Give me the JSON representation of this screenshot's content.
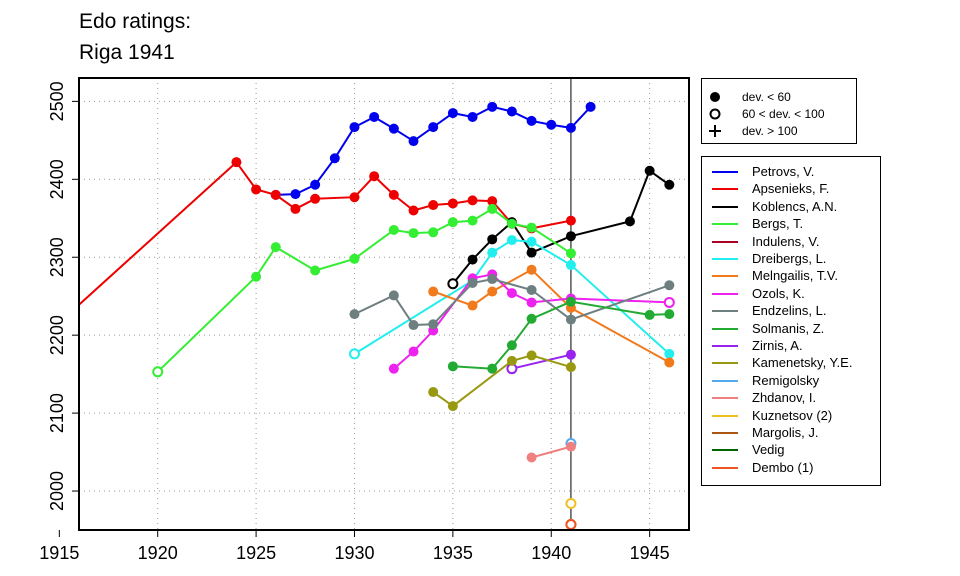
{
  "header": {
    "title_line1": "Edo ratings:",
    "title_line2": "Riga 1941"
  },
  "dev_legend": {
    "entries": [
      {
        "label": "dev. < 60",
        "symbol": "filled-circle"
      },
      {
        "label": "60 < dev. < 100",
        "symbol": "open-circle"
      },
      {
        "label": "dev. > 100",
        "symbol": "plus"
      }
    ]
  },
  "chart_data": {
    "type": "line",
    "title": "Edo ratings: Riga 1941",
    "xlabel": "",
    "ylabel": "",
    "xlim": [
      1916,
      1947
    ],
    "ylim": [
      1950,
      2530
    ],
    "xticks": [
      1915,
      1920,
      1925,
      1930,
      1935,
      1940,
      1945
    ],
    "yticks": [
      2000,
      2100,
      2200,
      2300,
      2400,
      2500
    ],
    "grid": true,
    "vline_x": 1941,
    "legend_position": "right",
    "series": [
      {
        "name": "Petrovs, V.",
        "color": "#0000ee",
        "points": [
          [
            1926,
            2380,
            "filled"
          ],
          [
            1927,
            2381,
            "filled"
          ],
          [
            1928,
            2393,
            "filled"
          ],
          [
            1929,
            2427,
            "filled"
          ],
          [
            1930,
            2467,
            "filled"
          ],
          [
            1931,
            2480,
            "filled"
          ],
          [
            1932,
            2465,
            "filled"
          ],
          [
            1933,
            2449,
            "filled"
          ],
          [
            1934,
            2467,
            "filled"
          ],
          [
            1935,
            2485,
            "filled"
          ],
          [
            1936,
            2480,
            "filled"
          ],
          [
            1937,
            2493,
            "filled"
          ],
          [
            1938,
            2487,
            "filled"
          ],
          [
            1939,
            2475,
            "filled"
          ],
          [
            1940,
            2470,
            "filled"
          ],
          [
            1941,
            2466,
            "filled"
          ],
          [
            1942,
            2493,
            "filled"
          ]
        ]
      },
      {
        "name": "Apsenieks, F.",
        "color": "#ee0000",
        "points": [
          [
            1916,
            2239,
            "none"
          ],
          [
            1924,
            2422,
            "filled"
          ],
          [
            1925,
            2387,
            "filled"
          ],
          [
            1926,
            2380,
            "filled"
          ],
          [
            1927,
            2362,
            "filled"
          ],
          [
            1928,
            2375,
            "filled"
          ],
          [
            1930,
            2377,
            "filled"
          ],
          [
            1931,
            2404,
            "filled"
          ],
          [
            1932,
            2380,
            "filled"
          ],
          [
            1933,
            2360,
            "filled"
          ],
          [
            1934,
            2367,
            "filled"
          ],
          [
            1935,
            2369,
            "filled"
          ],
          [
            1936,
            2373,
            "filled"
          ],
          [
            1937,
            2372,
            "filled"
          ],
          [
            1938,
            2343,
            "filled"
          ],
          [
            1939,
            2337,
            "filled"
          ],
          [
            1941,
            2347,
            "filled"
          ]
        ]
      },
      {
        "name": "Koblencs, A.N.",
        "color": "#000000",
        "points": [
          [
            1935,
            2266,
            "open"
          ],
          [
            1936,
            2297,
            "filled"
          ],
          [
            1937,
            2323,
            "filled"
          ],
          [
            1938,
            2345,
            "filled"
          ],
          [
            1939,
            2306,
            "filled"
          ],
          [
            1941,
            2327,
            "filled"
          ],
          [
            1944,
            2346,
            "filled"
          ],
          [
            1945,
            2411,
            "filled"
          ],
          [
            1946,
            2393,
            "filled"
          ]
        ]
      },
      {
        "name": "Bergs, T.",
        "color": "#33ee33",
        "points": [
          [
            1920,
            2153,
            "open"
          ],
          [
            1925,
            2275,
            "filled"
          ],
          [
            1926,
            2313,
            "filled"
          ],
          [
            1928,
            2283,
            "filled"
          ],
          [
            1930,
            2298,
            "filled"
          ],
          [
            1932,
            2335,
            "filled"
          ],
          [
            1933,
            2331,
            "filled"
          ],
          [
            1934,
            2332,
            "filled"
          ],
          [
            1935,
            2345,
            "filled"
          ],
          [
            1936,
            2347,
            "filled"
          ],
          [
            1937,
            2362,
            "filled"
          ],
          [
            1938,
            2343,
            "filled"
          ],
          [
            1939,
            2338,
            "filled"
          ],
          [
            1941,
            2305,
            "filled"
          ]
        ]
      },
      {
        "name": "Indulens, V.",
        "color": "#aa0022",
        "points": []
      },
      {
        "name": "Dreibergs, L.",
        "color": "#22eeee",
        "points": [
          [
            1930,
            2176,
            "open"
          ],
          [
            1936,
            2270,
            "filled"
          ],
          [
            1937,
            2306,
            "filled"
          ],
          [
            1938,
            2322,
            "filled"
          ],
          [
            1939,
            2320,
            "filled"
          ],
          [
            1941,
            2290,
            "filled"
          ],
          [
            1946,
            2176,
            "filled"
          ]
        ]
      },
      {
        "name": "Melngailis, T.V.",
        "color": "#f07a1c",
        "points": [
          [
            1934,
            2256,
            "filled"
          ],
          [
            1936,
            2238,
            "filled"
          ],
          [
            1937,
            2256,
            "filled"
          ],
          [
            1939,
            2284,
            "filled"
          ],
          [
            1941,
            2235,
            "filled"
          ],
          [
            1946,
            2165,
            "filled"
          ]
        ]
      },
      {
        "name": "Ozols, K.",
        "color": "#ee22ee",
        "points": [
          [
            1932,
            2157,
            "filled"
          ],
          [
            1933,
            2179,
            "filled"
          ],
          [
            1934,
            2206,
            "filled"
          ],
          [
            1936,
            2273,
            "filled"
          ],
          [
            1937,
            2278,
            "filled"
          ],
          [
            1938,
            2254,
            "filled"
          ],
          [
            1939,
            2242,
            "filled"
          ],
          [
            1941,
            2247,
            "filled"
          ],
          [
            1946,
            2242,
            "open"
          ]
        ]
      },
      {
        "name": "Endzelins, L.",
        "color": "#6e7f80",
        "points": [
          [
            1930,
            2227,
            "filled"
          ],
          [
            1932,
            2251,
            "filled"
          ],
          [
            1933,
            2213,
            "filled"
          ],
          [
            1934,
            2214,
            "filled"
          ],
          [
            1936,
            2267,
            "filled"
          ],
          [
            1937,
            2272,
            "filled"
          ],
          [
            1939,
            2258,
            "filled"
          ],
          [
            1941,
            2220,
            "filled"
          ],
          [
            1946,
            2264,
            "filled"
          ]
        ]
      },
      {
        "name": "Solmanis, Z.",
        "color": "#22aa33",
        "points": [
          [
            1935,
            2160,
            "filled"
          ],
          [
            1937,
            2157,
            "filled"
          ],
          [
            1938,
            2187,
            "filled"
          ],
          [
            1939,
            2221,
            "filled"
          ],
          [
            1941,
            2243,
            "filled"
          ],
          [
            1945,
            2226,
            "filled"
          ],
          [
            1946,
            2227,
            "filled"
          ]
        ]
      },
      {
        "name": "Zirnis, A.",
        "color": "#9922ee",
        "points": [
          [
            1938,
            2157,
            "open"
          ],
          [
            1941,
            2175,
            "filled"
          ]
        ]
      },
      {
        "name": "Kamenetsky, Y.E.",
        "color": "#999911",
        "points": [
          [
            1934,
            2127,
            "filled"
          ],
          [
            1935,
            2109,
            "filled"
          ],
          [
            1938,
            2167,
            "filled"
          ],
          [
            1939,
            2174,
            "filled"
          ],
          [
            1941,
            2159,
            "filled"
          ]
        ]
      },
      {
        "name": "Remigolsky",
        "color": "#55aaee",
        "points": [
          [
            1941,
            2061,
            "open"
          ]
        ]
      },
      {
        "name": "Zhdanov, I.",
        "color": "#f08080",
        "points": [
          [
            1939,
            2043,
            "filled"
          ],
          [
            1941,
            2057,
            "filled"
          ]
        ]
      },
      {
        "name": "Kuznetsov (2)",
        "color": "#f0c020",
        "points": [
          [
            1941,
            1984,
            "open"
          ]
        ]
      },
      {
        "name": "Margolis, J.",
        "color": "#aa5511",
        "points": [
          [
            1941,
            1957,
            "open"
          ]
        ]
      },
      {
        "name": "Vedig",
        "color": "#006600",
        "points": []
      },
      {
        "name": "Dembo (1)",
        "color": "#ee5522",
        "points": [
          [
            1941,
            1957,
            "open"
          ]
        ]
      }
    ]
  }
}
